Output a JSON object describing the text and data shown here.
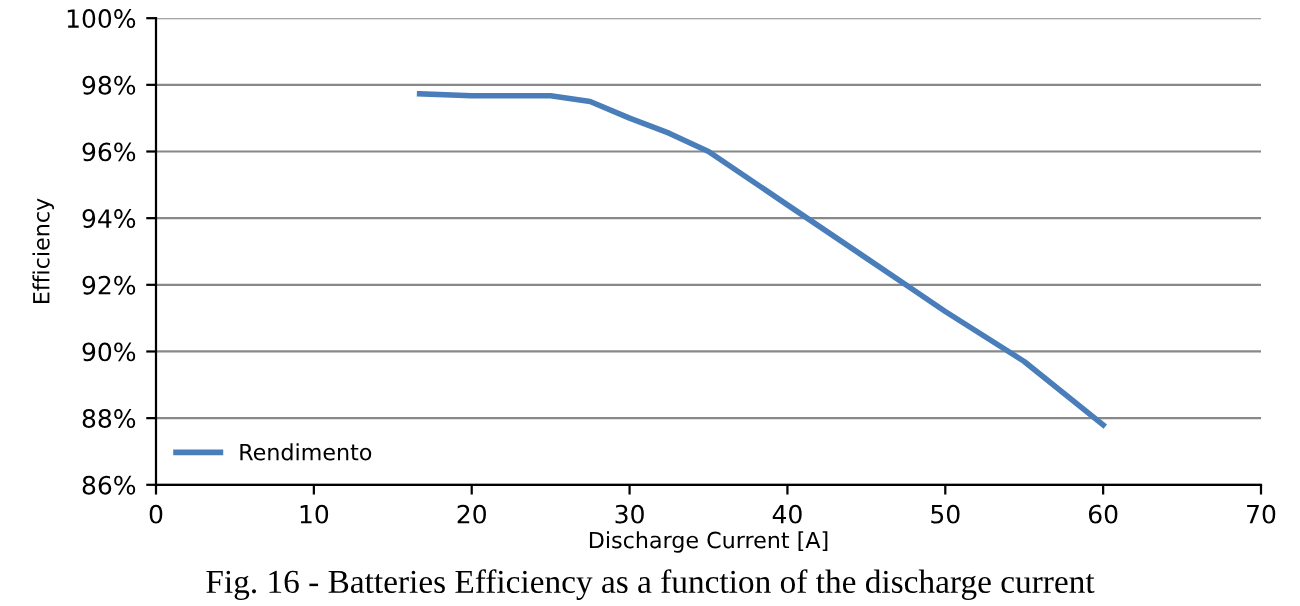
{
  "chart_data": {
    "type": "line",
    "xlabel": "Discharge Current [A]",
    "ylabel": "Efficiency",
    "series": [
      {
        "name": "Rendimento",
        "color": "#4a7ebb",
        "x": [
          16.7,
          20,
          25,
          27.5,
          30,
          32.5,
          35,
          40,
          45,
          47.5,
          50,
          55,
          60
        ],
        "values": [
          97.73,
          97.67,
          97.67,
          97.5,
          97.0,
          96.55,
          96.0,
          94.4,
          92.8,
          92.0,
          91.2,
          89.7,
          87.8
        ]
      }
    ],
    "xlim": [
      0,
      70
    ],
    "xticks": [
      0,
      10,
      20,
      30,
      40,
      50,
      60,
      70
    ],
    "ylim": [
      86,
      100
    ],
    "yticks": [
      {
        "value": 86,
        "label": "86%"
      },
      {
        "value": 88,
        "label": "88%"
      },
      {
        "value": 90,
        "label": "90%"
      },
      {
        "value": 92,
        "label": "92%"
      },
      {
        "value": 94,
        "label": "94%"
      },
      {
        "value": 96,
        "label": "96%"
      },
      {
        "value": 98,
        "label": "98%"
      },
      {
        "value": 100,
        "label": "100%"
      }
    ],
    "grid": "y",
    "legend": "bottom left",
    "marker": "none",
    "line_style": "solid",
    "annotations": [
      "Fig. 16 - Batteries Efficiency as a function of the discharge current"
    ]
  }
}
